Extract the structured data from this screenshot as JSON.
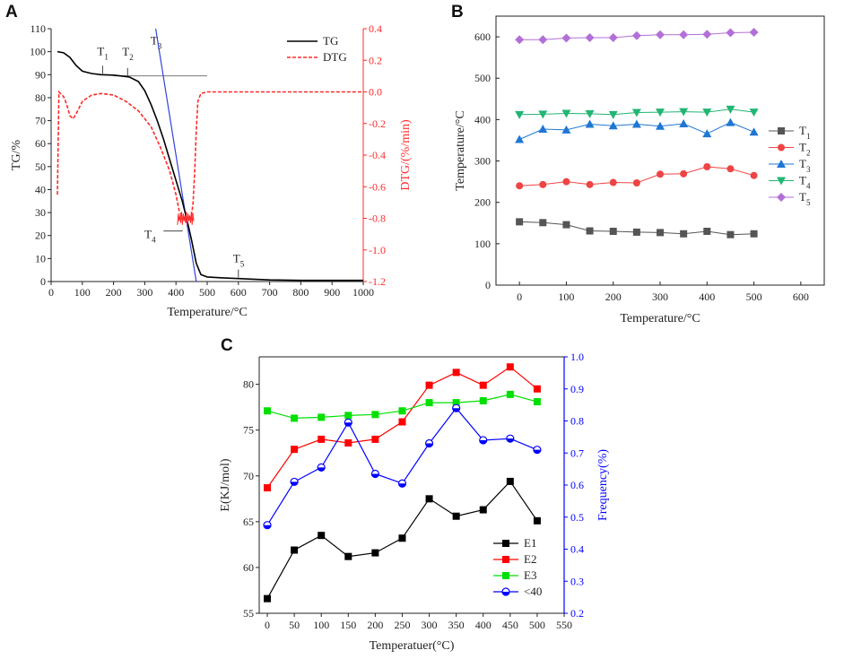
{
  "figure": {
    "panels": [
      "A",
      "B",
      "C"
    ]
  },
  "chart_data": [
    {
      "panel": "A",
      "type": "line",
      "xlabel": "Temperature/°C",
      "ylabel_left": "TG/%",
      "ylabel_right": "DTG/(%/min)",
      "xlim": [
        0,
        1000
      ],
      "xticks": [
        0,
        100,
        200,
        300,
        400,
        500,
        600,
        700,
        800,
        900,
        1000
      ],
      "ylim_left": [
        0,
        110
      ],
      "yticks_left": [
        0,
        10,
        20,
        30,
        40,
        50,
        60,
        70,
        80,
        90,
        100,
        110
      ],
      "ylim_right": [
        -1.2,
        0.4
      ],
      "yticks_right": [
        "0.4",
        "0.2",
        "0.0",
        "-0.2",
        "-0.4",
        "-0.6",
        "-0.8",
        "-1.0",
        "-1.2"
      ],
      "legend": [
        "TG",
        "DTG"
      ],
      "series": [
        {
          "name": "TG",
          "color": "#000000",
          "axis": "left",
          "x": [
            20,
            40,
            60,
            80,
            100,
            130,
            160,
            200,
            250,
            280,
            300,
            320,
            340,
            360,
            380,
            400,
            420,
            435,
            450,
            465,
            480,
            500,
            550,
            600,
            650,
            700,
            800,
            1000
          ],
          "y": [
            100,
            99.5,
            97.5,
            94,
            91.5,
            90.5,
            90,
            89.8,
            89,
            87,
            83,
            77,
            70,
            62,
            53,
            44,
            35,
            27,
            18,
            8,
            3,
            2,
            1.6,
            1.3,
            1,
            0.7,
            0.5,
            0.5
          ]
        },
        {
          "name": "DTG",
          "color": "#ff2a2a",
          "axis": "right",
          "dashed": true,
          "x": [
            20,
            25,
            30,
            40,
            50,
            60,
            70,
            80,
            100,
            130,
            160,
            200,
            240,
            280,
            320,
            350,
            380,
            400,
            410,
            420,
            440,
            450,
            455,
            460,
            465,
            470,
            480,
            500,
            600,
            800,
            1000
          ],
          "y": [
            -0.65,
            0.0,
            -0.01,
            -0.03,
            -0.08,
            -0.15,
            -0.17,
            -0.14,
            -0.06,
            -0.02,
            -0.01,
            -0.02,
            -0.06,
            -0.12,
            -0.22,
            -0.35,
            -0.5,
            -0.65,
            -0.75,
            -0.8,
            -0.8,
            -0.78,
            -0.7,
            -0.5,
            -0.25,
            -0.06,
            -0.01,
            0.0,
            0.0,
            0.0,
            0.0
          ]
        }
      ],
      "annotations": [
        {
          "label": "T",
          "sub": "1",
          "x": 165,
          "y": 90
        },
        {
          "label": "T",
          "sub": "2",
          "x": 245,
          "y": 89
        },
        {
          "label": "T",
          "sub": "3",
          "x": 330,
          "y": 89.5
        },
        {
          "label": "T",
          "sub": "4",
          "x": 420,
          "y": 22
        },
        {
          "label": "T",
          "sub": "5",
          "x": 600,
          "y": 1.3
        }
      ],
      "tangent_line": {
        "color": "#3344dd",
        "x": [
          335,
          465
        ],
        "y": [
          110,
          0
        ]
      },
      "baseline_line": {
        "color": "#888888",
        "x": [
          200,
          500
        ],
        "y": [
          89.5,
          89.5
        ]
      }
    },
    {
      "panel": "B",
      "type": "line",
      "xlabel": "Temperature/°C",
      "ylabel": "Temperature/°C",
      "xlim": [
        -50,
        650
      ],
      "xticks": [
        0,
        100,
        200,
        300,
        400,
        500,
        600
      ],
      "ylim": [
        0,
        650
      ],
      "yticks": [
        0,
        100,
        200,
        300,
        400,
        500,
        600
      ],
      "categories": [
        0,
        50,
        100,
        150,
        200,
        250,
        300,
        350,
        400,
        450,
        500
      ],
      "series": [
        {
          "name": "T",
          "sub": "1",
          "color": "#555555",
          "marker": "square",
          "values": [
            153,
            151,
            146,
            131,
            130,
            128,
            127,
            124,
            130,
            122,
            124
          ]
        },
        {
          "name": "T",
          "sub": "2",
          "color": "#ef4444",
          "marker": "circle",
          "values": [
            240,
            243,
            250,
            243,
            248,
            247,
            268,
            269,
            286,
            281,
            265
          ]
        },
        {
          "name": "T",
          "sub": "3",
          "color": "#1f77d4",
          "marker": "triangle-up",
          "values": [
            352,
            377,
            375,
            389,
            385,
            389,
            384,
            390,
            366,
            393,
            370
          ]
        },
        {
          "name": "T",
          "sub": "4",
          "color": "#22b573",
          "marker": "triangle-down",
          "values": [
            412,
            413,
            415,
            414,
            412,
            417,
            418,
            419,
            418,
            425,
            418
          ]
        },
        {
          "name": "T",
          "sub": "5",
          "color": "#b36fd8",
          "marker": "diamond",
          "values": [
            593,
            593,
            597,
            598,
            598,
            603,
            605,
            605,
            606,
            610,
            611
          ]
        }
      ]
    },
    {
      "panel": "C",
      "type": "line",
      "xlabel": "Temperatuer(°C)",
      "ylabel_left": "E(KJ/mol)",
      "ylabel_right": "Frequency(%)",
      "xlim": [
        -15,
        550
      ],
      "xticks": [
        0,
        50,
        100,
        150,
        200,
        250,
        300,
        350,
        400,
        450,
        500,
        550
      ],
      "ylim_left": [
        55,
        83
      ],
      "yticks_left": [
        55,
        60,
        65,
        70,
        75,
        80
      ],
      "ylim_right": [
        0.2,
        1.0
      ],
      "yticks_right": [
        "0.2",
        "0.3",
        "0.4",
        "0.5",
        "0.6",
        "0.7",
        "0.8",
        "0.9",
        "1.0"
      ],
      "categories": [
        0,
        50,
        100,
        150,
        200,
        250,
        300,
        350,
        400,
        450,
        500
      ],
      "series": [
        {
          "name": "E1",
          "color": "#000000",
          "marker": "square",
          "axis": "left",
          "values": [
            56.6,
            61.9,
            63.5,
            61.2,
            61.6,
            63.2,
            67.5,
            65.6,
            66.3,
            69.4,
            65.1
          ]
        },
        {
          "name": "E2",
          "color": "#ff0000",
          "marker": "square",
          "axis": "left",
          "values": [
            68.7,
            72.9,
            74.0,
            73.6,
            74.0,
            75.9,
            79.9,
            81.3,
            79.9,
            81.9,
            79.5
          ]
        },
        {
          "name": "E3",
          "color": "#00e000",
          "marker": "square",
          "axis": "left",
          "values": [
            77.1,
            76.3,
            76.4,
            76.6,
            76.7,
            77.1,
            78.0,
            78.0,
            78.2,
            78.9,
            78.1
          ]
        },
        {
          "name": "<40",
          "color": "#0000ff",
          "marker": "circle-half",
          "axis": "right",
          "values": [
            0.475,
            0.61,
            0.655,
            0.795,
            0.635,
            0.605,
            0.73,
            0.84,
            0.74,
            0.745,
            0.71
          ]
        }
      ]
    }
  ]
}
